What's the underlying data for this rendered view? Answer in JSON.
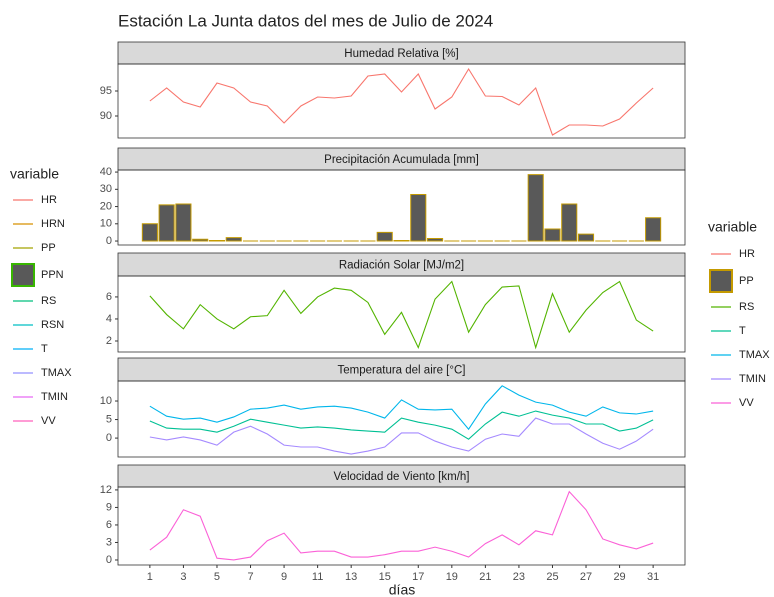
{
  "title": "Estación La Junta datos del mes de Julio de 2024",
  "xlabel": "días",
  "legends": [
    {
      "title": "variable",
      "items": [
        {
          "name": "HR",
          "color": "#F8766D"
        },
        {
          "name": "HRN",
          "color": "#D89000"
        },
        {
          "name": "PP",
          "color": "#A3A500"
        },
        {
          "name": "PPN",
          "color": "#595959",
          "edgecolor": "#39B600"
        },
        {
          "name": "RS",
          "color": "#00BF7D"
        },
        {
          "name": "RSN",
          "color": "#00BFC4"
        },
        {
          "name": "T",
          "color": "#00B0F6"
        },
        {
          "name": "TMAX",
          "color": "#9590FF"
        },
        {
          "name": "TMIN",
          "color": "#E76BF3"
        },
        {
          "name": "VV",
          "color": "#FF62BC"
        }
      ]
    },
    {
      "title": "variable",
      "items": [
        {
          "name": "HR",
          "color": "#F8766D"
        },
        {
          "name": "PP",
          "color": "#595959",
          "edgecolor": "#C49A00"
        },
        {
          "name": "RS",
          "color": "#53B400"
        },
        {
          "name": "T",
          "color": "#00C094"
        },
        {
          "name": "TMAX",
          "color": "#00B6EB"
        },
        {
          "name": "TMIN",
          "color": "#A58AFF"
        },
        {
          "name": "VV",
          "color": "#FB61D7"
        }
      ]
    }
  ],
  "chart_data": [
    {
      "type": "line",
      "title": "Humedad Relativa [%]",
      "x": [
        1,
        2,
        3,
        4,
        5,
        6,
        7,
        8,
        9,
        10,
        11,
        12,
        13,
        14,
        15,
        16,
        17,
        18,
        19,
        20,
        21,
        22,
        23,
        24,
        25,
        26,
        27,
        28,
        29,
        30,
        31
      ],
      "xlim": [
        -0.9,
        32.9
      ],
      "ylim": [
        85.6,
        100.4
      ],
      "yticks": [
        90,
        95
      ],
      "series": [
        {
          "name": "HR",
          "color": "#F8766D",
          "values": [
            93.0,
            95.6,
            92.8,
            91.8,
            96.6,
            95.6,
            92.8,
            92.0,
            88.6,
            92.0,
            93.8,
            93.6,
            94.0,
            98.0,
            98.4,
            94.8,
            98.4,
            91.4,
            93.8,
            99.4,
            94.0,
            93.9,
            92.2,
            95.6,
            86.2,
            88.2,
            88.2,
            88.0,
            89.4,
            92.6,
            95.6
          ]
        }
      ]
    },
    {
      "type": "bar",
      "title": "Precipitación Acumulada [mm]",
      "x": [
        1,
        2,
        3,
        4,
        5,
        6,
        7,
        8,
        9,
        10,
        11,
        12,
        13,
        14,
        15,
        16,
        17,
        18,
        19,
        20,
        21,
        22,
        23,
        24,
        25,
        26,
        27,
        28,
        29,
        30,
        31
      ],
      "xlim": [
        -0.9,
        32.9
      ],
      "ylim": [
        -2.3,
        41.2
      ],
      "yticks": [
        0,
        10,
        20,
        30,
        40
      ],
      "series": [
        {
          "name": "PP",
          "color": "#595959",
          "edgecolor": "#C49A00",
          "values": [
            10,
            21,
            21.5,
            1,
            0.3,
            2,
            0,
            0,
            0,
            0,
            0,
            0,
            0,
            0,
            5,
            0.3,
            27,
            1.5,
            0,
            0,
            0,
            0,
            0,
            38.5,
            7,
            21.5,
            4,
            0,
            0,
            0,
            13.5
          ]
        }
      ]
    },
    {
      "type": "line",
      "title": "Radiación Solar [MJ/m2]",
      "x": [
        1,
        2,
        3,
        4,
        5,
        6,
        7,
        8,
        9,
        10,
        11,
        12,
        13,
        14,
        15,
        16,
        17,
        18,
        19,
        20,
        21,
        22,
        23,
        24,
        25,
        26,
        27,
        28,
        29,
        30,
        31
      ],
      "xlim": [
        -0.9,
        32.9
      ],
      "ylim": [
        1.0,
        7.9
      ],
      "yticks": [
        2,
        4,
        6
      ],
      "series": [
        {
          "name": "RS",
          "color": "#53B400",
          "values": [
            6.1,
            4.4,
            3.1,
            5.3,
            4.0,
            3.1,
            4.2,
            4.3,
            6.6,
            4.5,
            6.0,
            6.8,
            6.6,
            5.5,
            2.6,
            4.6,
            1.4,
            5.8,
            7.4,
            2.8,
            5.3,
            6.9,
            7.0,
            1.4,
            6.3,
            2.8,
            4.8,
            6.4,
            7.4,
            3.9,
            2.9
          ]
        }
      ]
    },
    {
      "type": "line",
      "title": "Temperatura del aire [°C]",
      "x": [
        1,
        2,
        3,
        4,
        5,
        6,
        7,
        8,
        9,
        10,
        11,
        12,
        13,
        14,
        15,
        16,
        17,
        18,
        19,
        20,
        21,
        22,
        23,
        24,
        25,
        26,
        27,
        28,
        29,
        30,
        31
      ],
      "xlim": [
        -0.9,
        32.9
      ],
      "ylim": [
        -5.1,
        15.4
      ],
      "yticks": [
        0,
        5,
        10
      ],
      "series": [
        {
          "name": "T",
          "color": "#00C094",
          "values": [
            4.6,
            2.7,
            2.4,
            2.4,
            1.6,
            3.2,
            5.1,
            4.3,
            3.5,
            2.7,
            3.0,
            2.7,
            2.2,
            1.9,
            1.6,
            5.4,
            4.3,
            3.5,
            2.4,
            -0.3,
            3.8,
            7.0,
            5.9,
            7.3,
            6.2,
            5.4,
            3.8,
            3.8,
            1.9,
            2.7,
            4.9
          ]
        },
        {
          "name": "TMAX",
          "color": "#00B6EB",
          "values": [
            8.6,
            5.9,
            5.1,
            5.4,
            4.3,
            5.7,
            7.8,
            8.1,
            8.9,
            7.8,
            8.4,
            8.6,
            8.1,
            7.0,
            5.4,
            10.3,
            7.8,
            7.6,
            7.8,
            2.4,
            9.2,
            14.1,
            11.6,
            9.7,
            8.9,
            7.0,
            5.9,
            8.4,
            6.8,
            6.5,
            7.3
          ]
        },
        {
          "name": "TMIN",
          "color": "#A58AFF",
          "values": [
            0.3,
            -0.5,
            0.3,
            -0.5,
            -1.9,
            1.6,
            3.2,
            1.1,
            -1.9,
            -2.4,
            -2.4,
            -3.5,
            -4.3,
            -3.5,
            -2.4,
            1.4,
            1.4,
            -0.8,
            -2.4,
            -3.5,
            -0.3,
            1.1,
            0.5,
            5.4,
            3.8,
            3.8,
            1.1,
            -1.4,
            -3.0,
            -0.8,
            2.4
          ]
        }
      ]
    },
    {
      "type": "line",
      "title": "Velocidad de Viento [km/h]",
      "x": [
        1,
        2,
        3,
        4,
        5,
        6,
        7,
        8,
        9,
        10,
        11,
        12,
        13,
        14,
        15,
        16,
        17,
        18,
        19,
        20,
        21,
        22,
        23,
        24,
        25,
        26,
        27,
        28,
        29,
        30,
        31
      ],
      "xlim": [
        -0.9,
        32.9
      ],
      "ylim": [
        -0.86,
        12.5
      ],
      "yticks": [
        0,
        3,
        6,
        9,
        12
      ],
      "xticks": [
        1,
        3,
        5,
        7,
        9,
        11,
        13,
        15,
        17,
        19,
        21,
        23,
        25,
        27,
        29,
        31
      ],
      "series": [
        {
          "name": "VV",
          "color": "#FB61D7",
          "values": [
            1.7,
            3.9,
            8.6,
            7.5,
            0.3,
            0,
            0.5,
            3.3,
            4.6,
            1.2,
            1.5,
            1.5,
            0.5,
            0.5,
            0.9,
            1.5,
            1.5,
            2.2,
            1.5,
            0.5,
            2.8,
            4.3,
            2.6,
            5.0,
            4.3,
            11.7,
            8.6,
            3.6,
            2.6,
            1.9,
            2.9
          ]
        }
      ]
    }
  ]
}
